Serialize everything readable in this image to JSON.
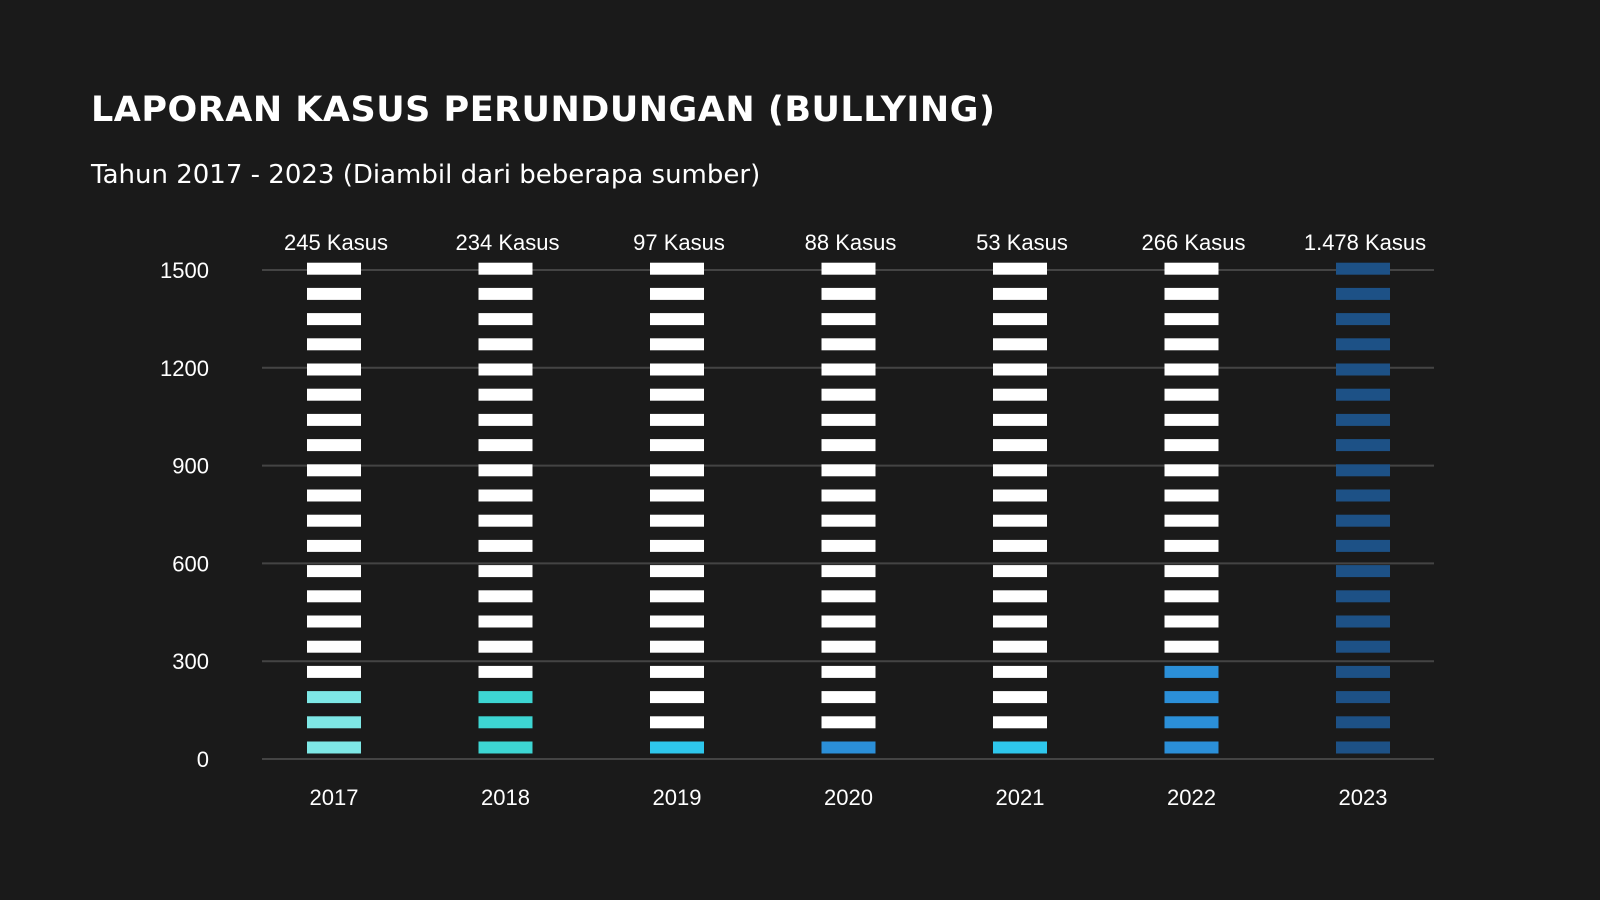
{
  "chart_data": {
    "type": "bar",
    "title": "LAPORAN KASUS PERUNDUNGAN (BULLYING)",
    "subtitle": "Tahun 2017 - 2023 (Diambil dari beberapa sumber)",
    "xlabel": "",
    "ylabel": "",
    "categories": [
      "2017",
      "2018",
      "2019",
      "2020",
      "2021",
      "2022",
      "2023"
    ],
    "values": [
      245,
      234,
      97,
      88,
      53,
      266,
      1478
    ],
    "value_labels": [
      "245 Kasus",
      "234 Kasus",
      "97 Kasus",
      "88 Kasus",
      "53 Kasus",
      "266 Kasus",
      "1.478 Kasus"
    ],
    "ylim": [
      0,
      1500
    ],
    "yticks": [
      0,
      300,
      600,
      900,
      1200,
      1500
    ],
    "grid": true,
    "segment_step": 75,
    "segment_count": 20,
    "colors": {
      "background": "#1a1a1a",
      "empty_segment": "#ffffff",
      "gridline": "#444444",
      "series": [
        "#7ee8e6",
        "#3dd6d3",
        "#2ec7ec",
        "#2b8fd8",
        "#2ec7ec",
        "#2b8fd8",
        "#1d5186"
      ]
    }
  }
}
